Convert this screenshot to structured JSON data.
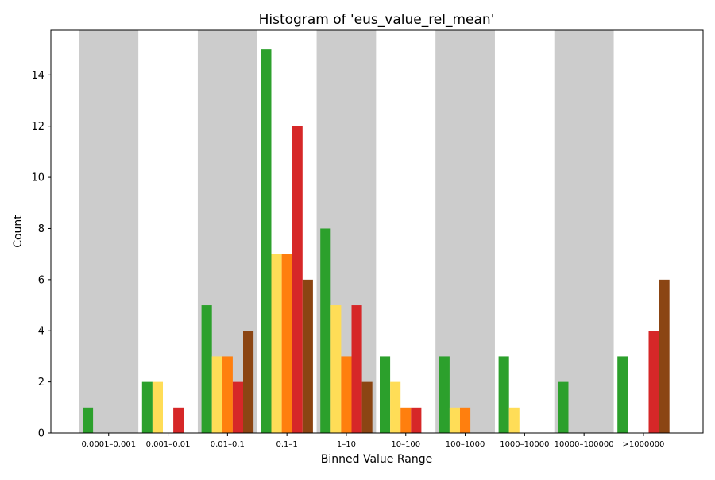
{
  "chart_data": {
    "type": "bar",
    "title": "Histogram of 'eus_value_rel_mean'",
    "xlabel": "Binned Value Range",
    "ylabel": "Count",
    "categories": [
      "0.0001–0.001",
      "0.001–0.01",
      "0.01–0.1",
      "0.1–1",
      "1–10",
      "10–100",
      "100–1000",
      "1000–10000",
      "10000–100000",
      ">1000000"
    ],
    "ylim": [
      0,
      15.75
    ],
    "yticks": [
      0,
      2,
      4,
      6,
      8,
      10,
      12,
      14
    ],
    "grid": false,
    "legend": "none",
    "background_bands": "alternating gray bands behind even-index categories",
    "band_color": "#cccccc",
    "series": [
      {
        "color": "#2ca02c",
        "values": [
          1,
          2,
          5,
          15,
          8,
          3,
          3,
          3,
          2,
          3
        ]
      },
      {
        "color": "#ffdd57",
        "values": [
          0,
          2,
          3,
          7,
          5,
          2,
          1,
          1,
          0,
          0
        ]
      },
      {
        "color": "#ff7f0e",
        "values": [
          0,
          0,
          3,
          7,
          3,
          1,
          1,
          0,
          0,
          0
        ]
      },
      {
        "color": "#d62728",
        "values": [
          0,
          1,
          2,
          12,
          5,
          1,
          0,
          0,
          0,
          4
        ]
      },
      {
        "color": "#8b4513",
        "values": [
          0,
          0,
          4,
          6,
          2,
          0,
          0,
          0,
          0,
          6
        ]
      }
    ]
  }
}
